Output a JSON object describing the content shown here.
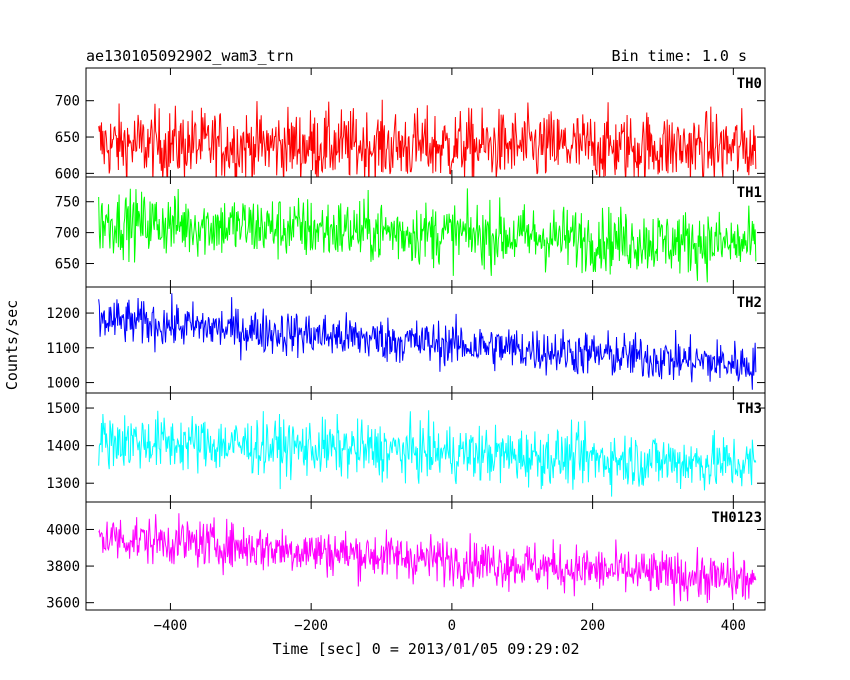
{
  "header": {
    "title": "ae130105092902_wam3_trn",
    "bin_time": "Bin time: 1.0 s"
  },
  "chart_data": {
    "type": "line",
    "xlabel": "Time [sec] 0 = 2013/01/05 09:29:02",
    "ylabel": "Counts/sec",
    "xlim": [
      -520,
      445
    ],
    "xticks": [
      -400,
      -200,
      0,
      200,
      400
    ],
    "x_start": -502,
    "x_end": 432,
    "bin_time": 1.0,
    "grid": false,
    "panels": [
      {
        "name": "TH0",
        "color": "#ff0000",
        "ylim": [
          595,
          745
        ],
        "yticks": [
          600,
          650,
          700
        ],
        "scale": "reversed-bottom",
        "mean_start": 640,
        "mean_end": 635,
        "noise": 25
      },
      {
        "name": "TH1",
        "color": "#00ff00",
        "ylim": [
          612,
          790
        ],
        "yticks": [
          650,
          700,
          750
        ],
        "mean_start": 718,
        "mean_end": 680,
        "noise": 26
      },
      {
        "name": "TH2",
        "color": "#0000ff",
        "ylim": [
          970,
          1275
        ],
        "yticks": [
          1000,
          1100,
          1200
        ],
        "mean_start": 1180,
        "mean_end": 1050,
        "noise": 33
      },
      {
        "name": "TH3",
        "color": "#00ffff",
        "ylim": [
          1250,
          1540
        ],
        "yticks": [
          1300,
          1400,
          1500
        ],
        "mean_start": 1415,
        "mean_end": 1350,
        "noise": 38
      },
      {
        "name": "TH0123",
        "color": "#ff00ff",
        "ylim": [
          3560,
          4150
        ],
        "yticks": [
          3600,
          3800,
          4000
        ],
        "mean_start": 3960,
        "mean_end": 3720,
        "noise": 65
      }
    ]
  }
}
